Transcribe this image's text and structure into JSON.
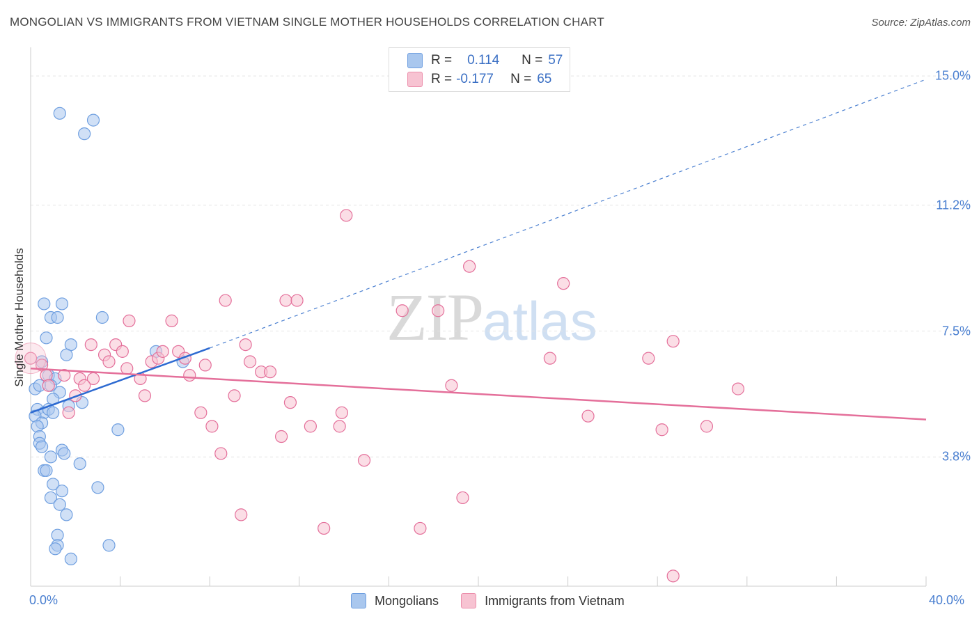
{
  "title": "MONGOLIAN VS IMMIGRANTS FROM VIETNAM SINGLE MOTHER HOUSEHOLDS CORRELATION CHART",
  "source": "Source: ZipAtlas.com",
  "watermark": {
    "zip": "ZIP",
    "atlas": "atlas"
  },
  "legend": {
    "rows": [
      {
        "r_label": "R =",
        "r_value": "0.114",
        "n_label": "N =",
        "n_value": "57",
        "color": "#a9c7ee",
        "border": "#6f9fe0"
      },
      {
        "r_label": "R =",
        "r_value": "-0.177",
        "n_label": "N =",
        "n_value": "65",
        "color": "#f7c3d2",
        "border": "#ec8fac"
      }
    ]
  },
  "bottom_legend": [
    "Mongolians",
    "Immigrants from Vietnam"
  ],
  "chart_data": {
    "type": "scatter",
    "title": "MONGOLIAN VS IMMIGRANTS FROM VIETNAM SINGLE MOTHER HOUSEHOLDS CORRELATION CHART",
    "xlabel": "",
    "ylabel": "Single Mother Households",
    "xlim": [
      0,
      40
    ],
    "ylim": [
      0,
      15.8
    ],
    "x_tick_labels": [
      "0.0%",
      "40.0%"
    ],
    "y_ticks": [
      3.8,
      7.5,
      11.2,
      15.0
    ],
    "y_tick_labels": [
      "3.8%",
      "7.5%",
      "11.2%",
      "15.0%"
    ],
    "grid": true,
    "legend_position": "top-center",
    "series": [
      {
        "name": "Mongolians",
        "color": "#6f9fe0",
        "fill": "#a9c7ee",
        "trend": {
          "x0": 0,
          "y0": 5.1,
          "x1": 8,
          "y1": 7.0,
          "extend_x1": 40,
          "extend_y1": 14.9
        },
        "points": [
          [
            1.3,
            13.9
          ],
          [
            2.8,
            13.7
          ],
          [
            2.4,
            13.3
          ],
          [
            0.6,
            8.3
          ],
          [
            1.4,
            8.3
          ],
          [
            0.9,
            7.9
          ],
          [
            1.2,
            7.9
          ],
          [
            3.2,
            7.9
          ],
          [
            0.7,
            7.3
          ],
          [
            1.8,
            7.1
          ],
          [
            1.6,
            6.8
          ],
          [
            5.6,
            6.9
          ],
          [
            6.8,
            6.6
          ],
          [
            0.5,
            6.6
          ],
          [
            0.8,
            6.2
          ],
          [
            1.1,
            6.1
          ],
          [
            0.9,
            5.9
          ],
          [
            0.2,
            5.8
          ],
          [
            0.4,
            5.9
          ],
          [
            1.3,
            5.7
          ],
          [
            1.0,
            5.5
          ],
          [
            2.3,
            5.4
          ],
          [
            1.7,
            5.3
          ],
          [
            0.3,
            5.2
          ],
          [
            0.6,
            5.1
          ],
          [
            0.8,
            5.2
          ],
          [
            1.0,
            5.1
          ],
          [
            0.2,
            5.0
          ],
          [
            0.5,
            4.8
          ],
          [
            0.3,
            4.7
          ],
          [
            3.9,
            4.6
          ],
          [
            0.4,
            4.4
          ],
          [
            0.4,
            4.2
          ],
          [
            0.5,
            4.1
          ],
          [
            1.4,
            4.0
          ],
          [
            1.5,
            3.9
          ],
          [
            0.9,
            3.8
          ],
          [
            2.2,
            3.6
          ],
          [
            0.6,
            3.4
          ],
          [
            0.7,
            3.4
          ],
          [
            1.0,
            3.0
          ],
          [
            1.4,
            2.8
          ],
          [
            3.0,
            2.9
          ],
          [
            0.9,
            2.6
          ],
          [
            1.3,
            2.4
          ],
          [
            1.6,
            2.1
          ],
          [
            1.2,
            1.5
          ],
          [
            1.2,
            1.2
          ],
          [
            1.1,
            1.1
          ],
          [
            3.5,
            1.2
          ],
          [
            1.8,
            0.8
          ]
        ]
      },
      {
        "name": "Immigrants from Vietnam",
        "color": "#e46f9a",
        "fill": "#f7c3d2",
        "trend": {
          "x0": 0,
          "y0": 6.4,
          "x1": 40,
          "y1": 4.9
        },
        "points": [
          [
            0.0,
            6.7
          ],
          [
            0.5,
            6.5
          ],
          [
            0.7,
            6.2
          ],
          [
            1.5,
            6.2
          ],
          [
            0.8,
            5.9
          ],
          [
            2.2,
            6.1
          ],
          [
            2.8,
            6.1
          ],
          [
            2.4,
            5.9
          ],
          [
            2.0,
            5.6
          ],
          [
            1.7,
            5.1
          ],
          [
            2.7,
            7.1
          ],
          [
            3.3,
            6.8
          ],
          [
            3.5,
            6.6
          ],
          [
            3.8,
            7.1
          ],
          [
            4.1,
            6.9
          ],
          [
            4.3,
            6.4
          ],
          [
            4.9,
            6.1
          ],
          [
            5.1,
            5.6
          ],
          [
            4.4,
            7.8
          ],
          [
            5.4,
            6.6
          ],
          [
            5.7,
            6.7
          ],
          [
            5.9,
            6.9
          ],
          [
            6.3,
            7.8
          ],
          [
            6.6,
            6.9
          ],
          [
            6.9,
            6.7
          ],
          [
            7.1,
            6.2
          ],
          [
            7.8,
            6.5
          ],
          [
            7.6,
            5.1
          ],
          [
            8.1,
            4.7
          ],
          [
            8.5,
            3.9
          ],
          [
            8.7,
            8.4
          ],
          [
            9.1,
            5.6
          ],
          [
            9.4,
            2.1
          ],
          [
            9.6,
            7.1
          ],
          [
            9.8,
            6.6
          ],
          [
            10.3,
            6.3
          ],
          [
            10.7,
            6.3
          ],
          [
            11.2,
            4.4
          ],
          [
            11.4,
            8.4
          ],
          [
            11.9,
            8.4
          ],
          [
            11.6,
            5.4
          ],
          [
            12.5,
            4.7
          ],
          [
            13.1,
            1.7
          ],
          [
            13.8,
            4.7
          ],
          [
            13.9,
            5.1
          ],
          [
            14.1,
            10.9
          ],
          [
            14.9,
            3.7
          ],
          [
            16.6,
            8.1
          ],
          [
            17.4,
            1.7
          ],
          [
            18.2,
            8.1
          ],
          [
            18.8,
            5.9
          ],
          [
            19.3,
            2.6
          ],
          [
            19.6,
            9.4
          ],
          [
            23.2,
            6.7
          ],
          [
            23.8,
            8.9
          ],
          [
            24.9,
            5.0
          ],
          [
            27.6,
            6.7
          ],
          [
            28.2,
            4.6
          ],
          [
            28.7,
            7.2
          ],
          [
            28.7,
            0.3
          ],
          [
            30.2,
            4.7
          ],
          [
            31.6,
            5.8
          ]
        ]
      }
    ]
  }
}
